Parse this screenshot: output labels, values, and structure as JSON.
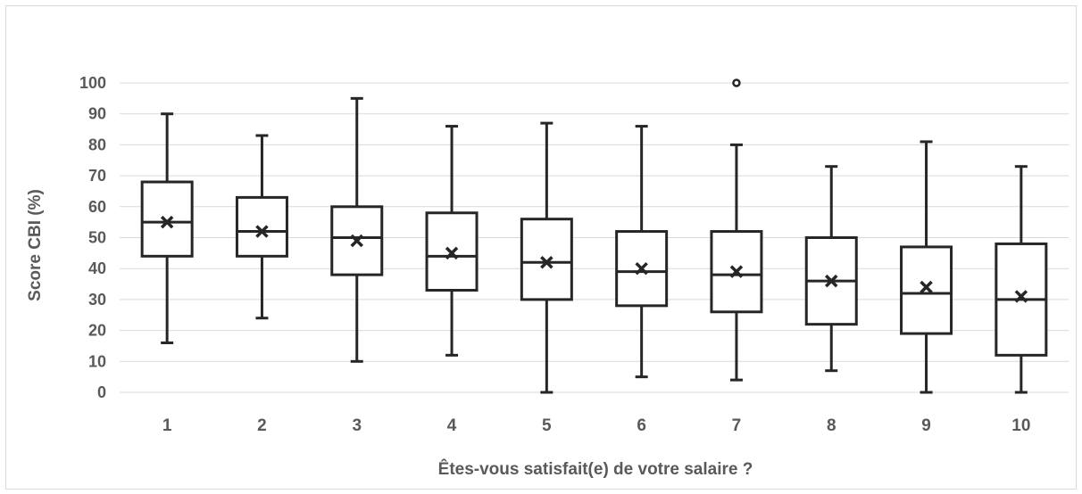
{
  "chart_data": {
    "type": "box",
    "xlabel": "Êtes-vous satisfait(e) de votre salaire ?",
    "ylabel": "Score CBI (%)",
    "ylim": [
      0,
      100
    ],
    "yticks": [
      "0",
      "10",
      "20",
      "30",
      "40",
      "50",
      "60",
      "70",
      "80",
      "90",
      "100"
    ],
    "grid": "horizontal",
    "categories": [
      "1",
      "2",
      "3",
      "4",
      "5",
      "6",
      "7",
      "8",
      "9",
      "10"
    ],
    "boxes": [
      {
        "category": "1",
        "min": 16,
        "q1": 44,
        "median": 55,
        "q3": 68,
        "max": 90,
        "mean": 55
      },
      {
        "category": "2",
        "min": 24,
        "q1": 44,
        "median": 52,
        "q3": 63,
        "max": 83,
        "mean": 52
      },
      {
        "category": "3",
        "min": 10,
        "q1": 38,
        "median": 50,
        "q3": 60,
        "max": 95,
        "mean": 49
      },
      {
        "category": "4",
        "min": 12,
        "q1": 33,
        "median": 44,
        "q3": 58,
        "max": 86,
        "mean": 45
      },
      {
        "category": "5",
        "min": 0,
        "q1": 30,
        "median": 42,
        "q3": 56,
        "max": 87,
        "mean": 42
      },
      {
        "category": "6",
        "min": 5,
        "q1": 28,
        "median": 39,
        "q3": 52,
        "max": 86,
        "mean": 40
      },
      {
        "category": "7",
        "min": 4,
        "q1": 26,
        "median": 38,
        "q3": 52,
        "max": 80,
        "mean": 39,
        "outliers": [
          100
        ]
      },
      {
        "category": "8",
        "min": 7,
        "q1": 22,
        "median": 36,
        "q3": 50,
        "max": 73,
        "mean": 36
      },
      {
        "category": "9",
        "min": 0,
        "q1": 19,
        "median": 32,
        "q3": 47,
        "max": 81,
        "mean": 34
      },
      {
        "category": "10",
        "min": 0,
        "q1": 12,
        "median": 30,
        "q3": 48,
        "max": 73,
        "mean": 31
      }
    ],
    "colors": {
      "box": "#262626",
      "grid": "#d9d9d9",
      "text": "#595959"
    }
  }
}
